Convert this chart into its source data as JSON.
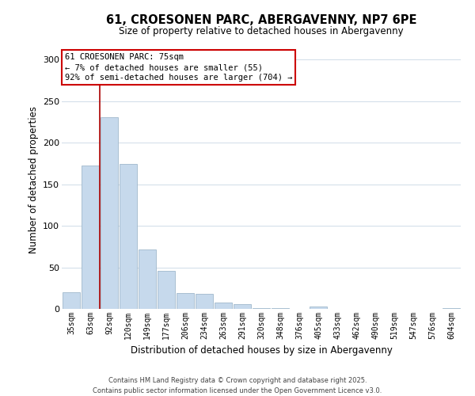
{
  "title": "61, CROESONEN PARC, ABERGAVENNY, NP7 6PE",
  "subtitle": "Size of property relative to detached houses in Abergavenny",
  "xlabel": "Distribution of detached houses by size in Abergavenny",
  "ylabel": "Number of detached properties",
  "categories": [
    "35sqm",
    "63sqm",
    "92sqm",
    "120sqm",
    "149sqm",
    "177sqm",
    "206sqm",
    "234sqm",
    "263sqm",
    "291sqm",
    "320sqm",
    "348sqm",
    "376sqm",
    "405sqm",
    "433sqm",
    "462sqm",
    "490sqm",
    "519sqm",
    "547sqm",
    "576sqm",
    "604sqm"
  ],
  "values": [
    20,
    173,
    231,
    175,
    72,
    46,
    19,
    18,
    8,
    6,
    1,
    1,
    0,
    3,
    0,
    0,
    0,
    0,
    0,
    0,
    1
  ],
  "bar_color": "#c6d9ec",
  "bar_edge_color": "#a0b8cc",
  "vline_x": 1.5,
  "vline_color": "#aa0000",
  "annotation_title": "61 CROESONEN PARC: 75sqm",
  "annotation_line1": "← 7% of detached houses are smaller (55)",
  "annotation_line2": "92% of semi-detached houses are larger (704) →",
  "annotation_box_color": "white",
  "annotation_box_edge": "#cc0000",
  "ylim": [
    0,
    310
  ],
  "yticks": [
    0,
    50,
    100,
    150,
    200,
    250,
    300
  ],
  "footer_line1": "Contains HM Land Registry data © Crown copyright and database right 2025.",
  "footer_line2": "Contains public sector information licensed under the Open Government Licence v3.0.",
  "bg_color": "white",
  "grid_color": "#d0dce8"
}
